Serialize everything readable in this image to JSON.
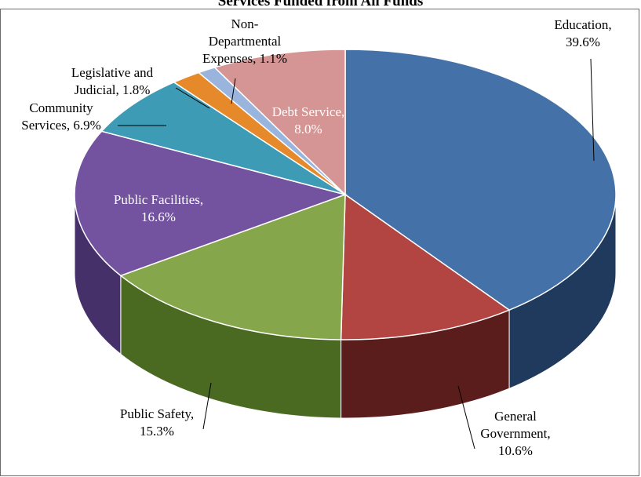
{
  "chart_data": {
    "type": "pie",
    "title": "Services Funded from All Funds",
    "slices": [
      {
        "label": "Education",
        "value": 39.6,
        "text": [
          "Education,",
          "39.6%"
        ],
        "top": "#4472a8",
        "side": "#1f3a5c"
      },
      {
        "label": "General Government",
        "value": 10.6,
        "text": [
          "General",
          "Government,",
          "10.6%"
        ],
        "top": "#b24541",
        "side": "#5a1d1b"
      },
      {
        "label": "Public Safety",
        "value": 15.3,
        "text": [
          "Public Safety,",
          "15.3%"
        ],
        "top": "#85a64a",
        "side": "#4a6a22"
      },
      {
        "label": "Public Facilities",
        "value": 16.6,
        "text": [
          "Public Facilities,",
          "16.6%"
        ],
        "top": "#7352a0",
        "side": "#45306a"
      },
      {
        "label": "Community Services",
        "value": 6.9,
        "text": [
          "Community",
          "Services, 6.9%"
        ],
        "top": "#3d9bb5",
        "side": "#1d5e70"
      },
      {
        "label": "Legislative and Judicial",
        "value": 1.8,
        "text": [
          "Legislative and",
          "Judicial, 1.8%"
        ],
        "top": "#e6892b",
        "side": "#8a4f14"
      },
      {
        "label": "Non-Departmental Expenses",
        "value": 1.1,
        "text": [
          "Non-",
          "Departmental",
          "Expenses, 1.1%"
        ],
        "top": "#9ab5dd",
        "side": "#5a7294"
      },
      {
        "label": "Debt Service",
        "value": 8.0,
        "text": [
          "Debt Service,",
          "8.0%"
        ],
        "top": "#d49594",
        "side": "#8a5554"
      }
    ],
    "legend": "none"
  }
}
